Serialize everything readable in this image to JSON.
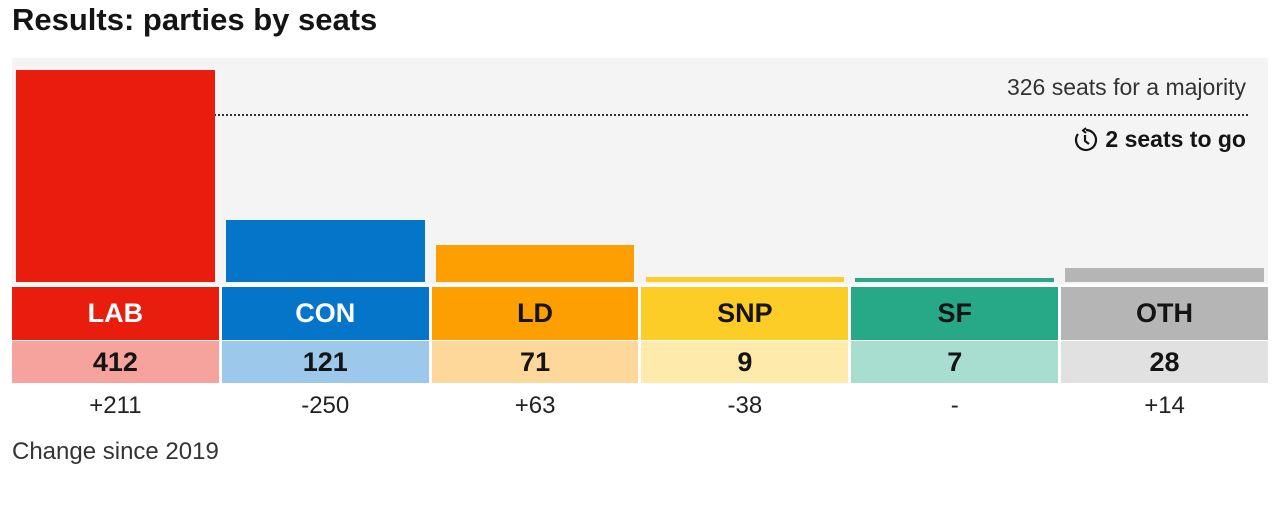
{
  "title": "Results: parties by seats",
  "majority_label": "326 seats for a majority",
  "to_go_label": "2 seats to go",
  "change_note": "Change since 2019",
  "chart_data": {
    "type": "bar",
    "title": "Results: parties by seats",
    "categories": [
      "LAB",
      "CON",
      "LD",
      "SNP",
      "SF",
      "OTH"
    ],
    "values": [
      412,
      121,
      71,
      9,
      7,
      28
    ],
    "changes": [
      "+211",
      "-250",
      "+63",
      "-38",
      "-",
      "+14"
    ],
    "colors": [
      "#e91d0e",
      "#0575c9",
      "#fd9f00",
      "#fdcd27",
      "#27a987",
      "#b5b5b5"
    ],
    "light_colors": [
      "#f6a39d",
      "#9bc8eb",
      "#fed89b",
      "#feebab",
      "#a7decf",
      "#e1e1e1"
    ],
    "label_text_colors": [
      "#ffffff",
      "#ffffff",
      "#141414",
      "#141414",
      "#141414",
      "#141414"
    ],
    "majority": 326,
    "ylim": [
      0,
      412
    ]
  }
}
